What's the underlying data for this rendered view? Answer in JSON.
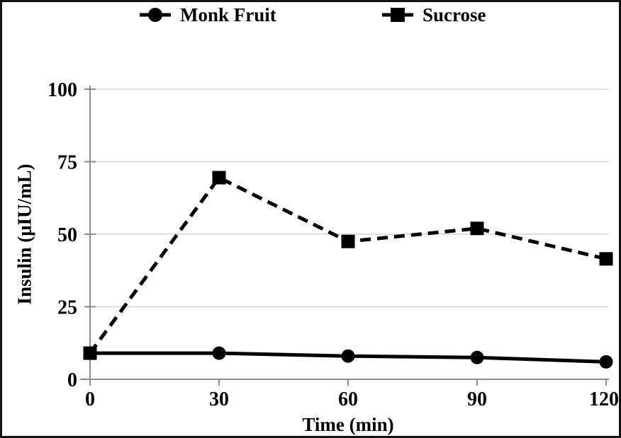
{
  "chart_data": {
    "type": "line",
    "title": "",
    "xlabel": "Time (min)",
    "ylabel": "Insulin (μIU/mL)",
    "x": [
      0,
      30,
      60,
      90,
      120
    ],
    "series": [
      {
        "name": "Monk Fruit",
        "values": [
          9,
          9,
          8,
          7.5,
          6
        ],
        "line_style": "solid",
        "marker": "circle"
      },
      {
        "name": "Sucrose",
        "values": [
          9,
          69.5,
          47.5,
          52,
          41.5
        ],
        "line_style": "dashed",
        "marker": "square"
      }
    ],
    "xlim": [
      0,
      120
    ],
    "ylim": [
      0,
      100
    ],
    "xticks": [
      0,
      30,
      60,
      90,
      120
    ],
    "yticks": [
      0,
      25,
      50,
      75,
      100
    ],
    "grid": "horizontal",
    "legend_position": "top-center",
    "colors": {
      "series": "#000000",
      "gridline": "#d6d6d6",
      "axis": "#8a8a8a",
      "background": "#ffffff",
      "frame_border": "#141414"
    }
  }
}
